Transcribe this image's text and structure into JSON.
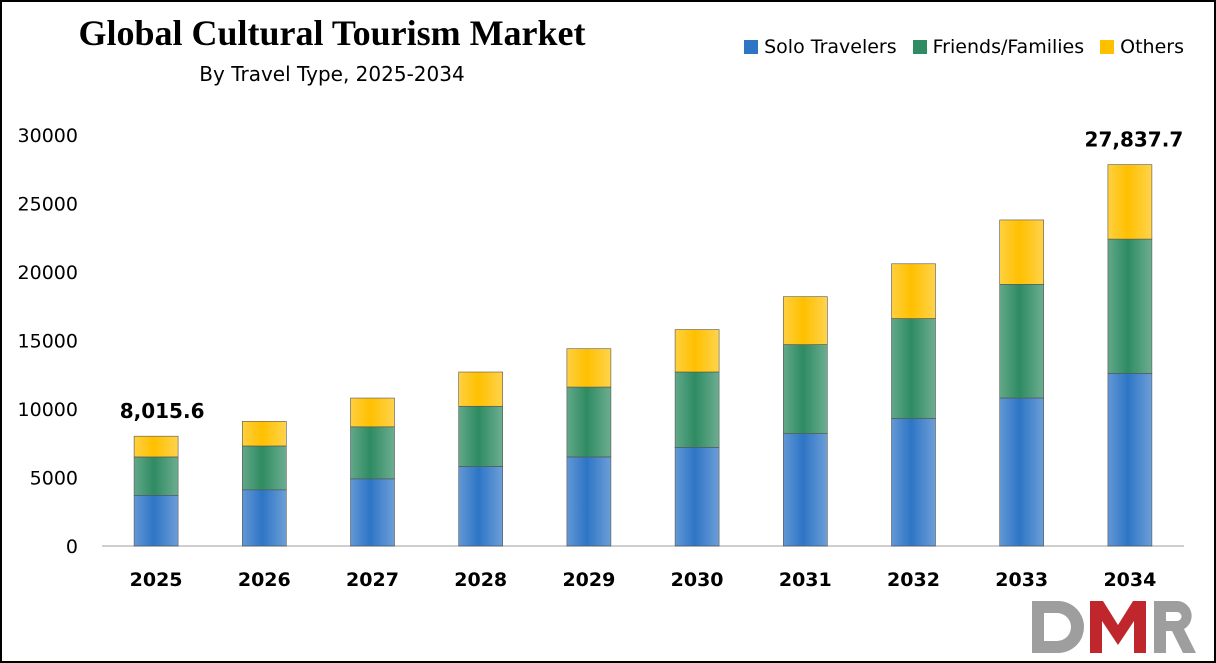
{
  "chart_data": {
    "type": "bar",
    "stacked": true,
    "title": "Global Cultural Tourism Market",
    "subtitle": "By Travel Type, 2025-2034",
    "xlabel": "",
    "ylabel": "",
    "categories": [
      "2025",
      "2026",
      "2027",
      "2028",
      "2029",
      "2030",
      "2031",
      "2032",
      "2033",
      "2034"
    ],
    "series": [
      {
        "name": "Solo Travelers",
        "color": "#2e75c6",
        "values": [
          3700,
          4100,
          4900,
          5800,
          6500,
          7200,
          8200,
          9300,
          10800,
          12600
        ]
      },
      {
        "name": "Friends/Families",
        "color": "#2e8b62",
        "values": [
          2800,
          3200,
          3800,
          4400,
          5100,
          5500,
          6500,
          7300,
          8300,
          9800
        ]
      },
      {
        "name": "Others",
        "color": "#ffc000",
        "values": [
          1515.6,
          1800,
          2100,
          2500,
          2800,
          3100,
          3500,
          4000,
          4700,
          5437.7
        ]
      }
    ],
    "data_labels": [
      {
        "category": "2025",
        "text": "8,015.6"
      },
      {
        "category": "2034",
        "text": "27,837.7"
      }
    ],
    "ylim": [
      0,
      30000
    ],
    "yticks": [
      0,
      5000,
      10000,
      15000,
      20000,
      25000,
      30000
    ],
    "grid": false,
    "legend_position": "top-right"
  },
  "logo": {
    "text": "DMR",
    "colors": [
      "#9e9e9e",
      "#c0272d"
    ]
  }
}
